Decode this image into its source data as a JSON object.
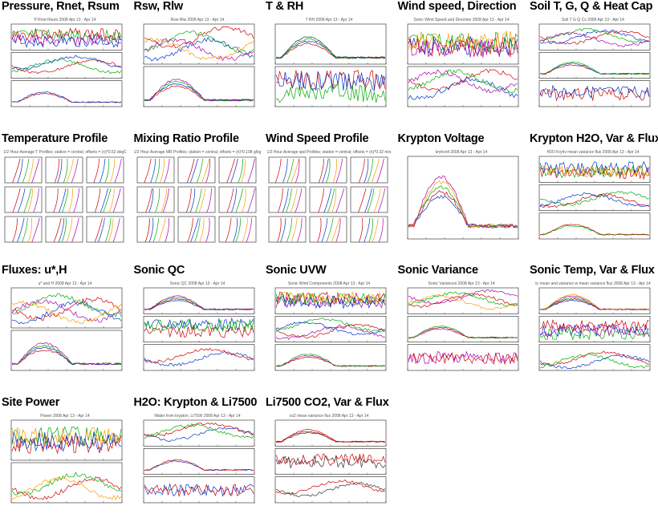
{
  "tiles": [
    {
      "title": "Pressure, Rnet, Rsum",
      "subtitle": "P Rnet Rsum 2008 Apr 13 - Apr 14",
      "panels": 3,
      "colors": [
        "#cc0000",
        "#0033cc",
        "#00aa00",
        "#aa00aa"
      ]
    },
    {
      "title": "Rsw, Rlw",
      "subtitle": "Rsw Rlw 2008 Apr 13 - Apr 14",
      "panels": 2,
      "colors": [
        "#cc0000",
        "#0033cc",
        "#00aa00",
        "#aa00aa",
        "#ff9900"
      ]
    },
    {
      "title": "T & RH",
      "subtitle": "T RH 2008 Apr 13 - Apr 14",
      "panels": 2,
      "colors": [
        "#cc0000",
        "#0033cc",
        "#00aa00",
        "#333333"
      ]
    },
    {
      "title": "Wind speed, Direction",
      "subtitle": "Sonic Wind Speed and Direction 2008 Apr 13 - Apr 14",
      "panels": 2,
      "colors": [
        "#cc0000",
        "#0033cc",
        "#00aa00",
        "#aa00aa",
        "#ff9900"
      ]
    },
    {
      "title": "Soil T, G, Q & Heat Cap",
      "subtitle": "Soil T G Q Cv 2008 Apr 13 - Apr 14",
      "panels": 3,
      "colors": [
        "#cc0000",
        "#0033cc",
        "#00aa00",
        "#aa00aa"
      ]
    },
    {
      "title": "Temperature Profile",
      "subtitle": "1/2 Hour Average T Profiles; station = central; offsets = (n)*0.52 degC",
      "panels": 0,
      "grid": true,
      "colors": [
        "#cc0000",
        "#0033cc",
        "#00aa00",
        "#ff9900",
        "#aa00aa"
      ]
    },
    {
      "title": "Mixing Ratio Profile",
      "subtitle": "1/2 Hour Average MR Profiles; station = central; offsets = (n)*0.108 g/kg",
      "panels": 0,
      "grid": true,
      "colors": [
        "#cc0000",
        "#0033cc",
        "#00aa00",
        "#ff9900",
        "#aa00aa"
      ]
    },
    {
      "title": "Wind Speed Profile",
      "subtitle": "1/2 Hour Average spd Profiles; station = central; offsets = (n)*0.32 m/s",
      "panels": 0,
      "grid": true,
      "colors": [
        "#cc0000",
        "#0033cc",
        "#00aa00",
        "#ff9900",
        "#aa00aa"
      ]
    },
    {
      "title": "Krypton Voltage",
      "subtitle": "kryhvolt 2008 Apr 13 - Apr 14",
      "panels": 1,
      "colors": [
        "#0033cc",
        "#cc0000",
        "#00aa00",
        "#ff9900",
        "#aa00aa"
      ]
    },
    {
      "title": "Krypton H2O, Var & Flux",
      "subtitle": "H2O Kryhv mean variance flux 2008 Apr 13 - Apr 14",
      "panels": 3,
      "colors": [
        "#00aa00",
        "#cc0000",
        "#0033cc",
        "#ff9900"
      ]
    },
    {
      "title": "Fluxes: u*,H",
      "subtitle": "u* and H 2008 Apr 13 - Apr 14",
      "panels": 2,
      "colors": [
        "#cc0000",
        "#0033cc",
        "#00aa00",
        "#aa00aa",
        "#ff9900"
      ]
    },
    {
      "title": "Sonic QC",
      "subtitle": "Sonic QC 2008 Apr 13 - Apr 14",
      "panels": 3,
      "colors": [
        "#0033cc",
        "#cc0000",
        "#00aa00",
        "#aa00aa"
      ]
    },
    {
      "title": "Sonic UVW",
      "subtitle": "Sonic Wind Components 2008 Apr 13 - Apr 14",
      "panels": 3,
      "colors": [
        "#cc0000",
        "#aa00aa",
        "#00aa00",
        "#0033cc",
        "#ff9900"
      ]
    },
    {
      "title": "Sonic Variance",
      "subtitle": "Sonic Variances 2008 Apr 13 - Apr 14",
      "panels": 3,
      "colors": [
        "#aa00aa",
        "#cc0000",
        "#00aa00",
        "#ff9900"
      ]
    },
    {
      "title": "Sonic Temp, Var & Flux",
      "subtitle": "tc mean and variance w mean variance flux 2008 Apr 13 - Apr 14",
      "panels": 3,
      "colors": [
        "#0033cc",
        "#cc0000",
        "#00aa00",
        "#aa00aa",
        "#ff9900"
      ]
    },
    {
      "title": "Site Power",
      "subtitle": "Power 2008 Apr 13 - Apr 14",
      "panels": 2,
      "colors": [
        "#cc0000",
        "#00aa00",
        "#ff9900",
        "#0033cc"
      ]
    },
    {
      "title": "H2O: Krypton & Li7500",
      "subtitle": "Water from krypton, Li7500 2008 Apr 13 - Apr 14",
      "panels": 3,
      "colors": [
        "#0033cc",
        "#cc0000",
        "#00aa00"
      ]
    },
    {
      "title": "Li7500 CO2, Var & Flux",
      "subtitle": "co2 mean variance flux 2008 Apr 13 - Apr 14",
      "panels": 3,
      "colors": [
        "#333333",
        "#cc0000",
        "#cc0000"
      ]
    }
  ]
}
